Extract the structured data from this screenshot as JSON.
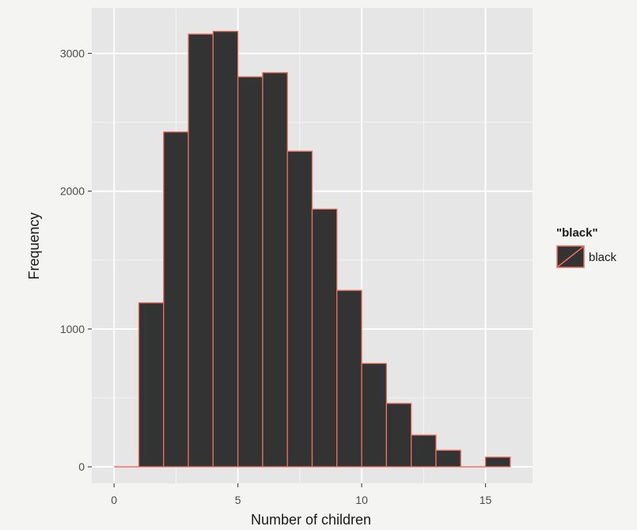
{
  "chart_data": {
    "type": "bar",
    "histogram": true,
    "bin_width": 1,
    "bins": [
      {
        "x0": 0,
        "x1": 1,
        "count": 0
      },
      {
        "x0": 1,
        "x1": 2,
        "count": 1190
      },
      {
        "x0": 2,
        "x1": 3,
        "count": 2430
      },
      {
        "x0": 3,
        "x1": 4,
        "count": 3140
      },
      {
        "x0": 4,
        "x1": 5,
        "count": 3160
      },
      {
        "x0": 5,
        "x1": 6,
        "count": 2830
      },
      {
        "x0": 6,
        "x1": 7,
        "count": 2860
      },
      {
        "x0": 7,
        "x1": 8,
        "count": 2290
      },
      {
        "x0": 8,
        "x1": 9,
        "count": 1870
      },
      {
        "x0": 9,
        "x1": 10,
        "count": 1280
      },
      {
        "x0": 10,
        "x1": 11,
        "count": 750
      },
      {
        "x0": 11,
        "x1": 12,
        "count": 460
      },
      {
        "x0": 12,
        "x1": 13,
        "count": 230
      },
      {
        "x0": 13,
        "x1": 14,
        "count": 120
      },
      {
        "x0": 14,
        "x1": 15,
        "count": 0
      },
      {
        "x0": 15,
        "x1": 16,
        "count": 70
      }
    ],
    "xlabel": "Number of children",
    "ylabel": "Frequency",
    "xlim": [
      -0.9,
      16.9
    ],
    "ylim": [
      -120,
      3330
    ],
    "x_ticks": [
      0,
      5,
      10,
      15
    ],
    "x_tick_labels": [
      "0",
      "5",
      "10",
      "15"
    ],
    "y_ticks": [
      0,
      1000,
      2000,
      3000
    ],
    "y_tick_labels": [
      "0",
      "1000",
      "2000",
      "3000"
    ],
    "grid": true,
    "legend": {
      "title": "\"black\"",
      "items": [
        {
          "label": "black",
          "fill": "#333333",
          "stroke": "#e8705f"
        }
      ],
      "position": "right"
    },
    "colors": {
      "bar_fill": "#333333",
      "bar_outline": "#e8705f",
      "panel_background": "#e6e6e6",
      "grid": "#ffffff"
    }
  }
}
